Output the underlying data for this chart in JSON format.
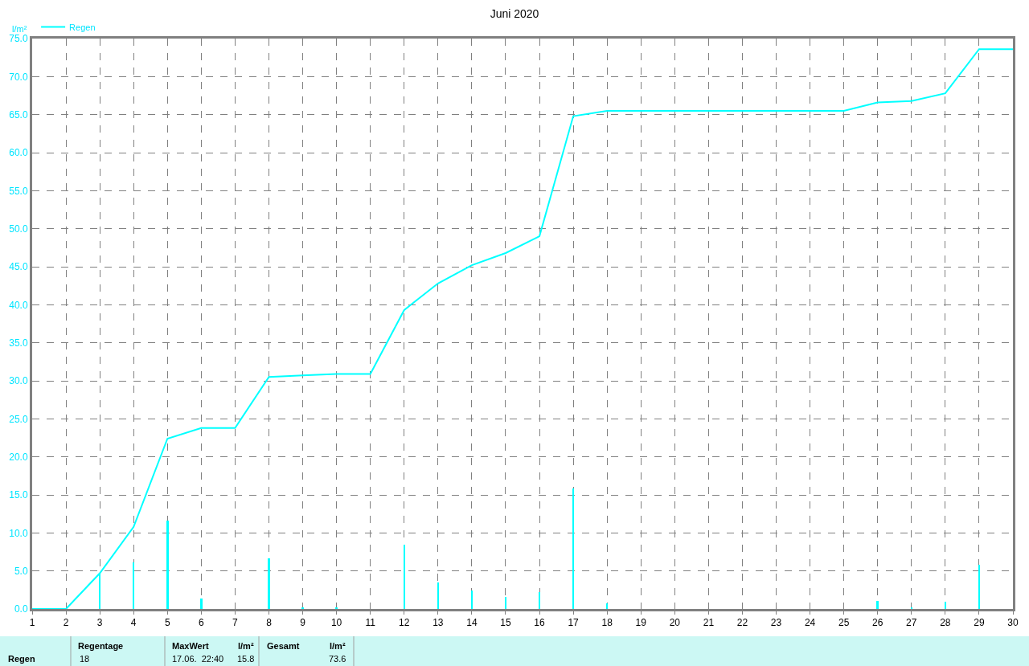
{
  "chart_data": {
    "type": "bar",
    "title": "Juni 2020",
    "ylabel": "l/m²",
    "series": [
      {
        "color": "#00ffff",
        "x": [
          3,
          4,
          5,
          6,
          8,
          9,
          10,
          12,
          13,
          14,
          15,
          16,
          17,
          18,
          26,
          27,
          28,
          29
        ],
        "values": [
          4.7,
          6.1,
          11.6,
          1.4,
          6.7,
          0.2,
          0.2,
          8.4,
          3.5,
          2.4,
          1.6,
          2.2,
          15.8,
          0.7,
          1.1,
          0.2,
          1.0,
          5.8
        ]
      },
      {
        "type": "line",
        "name": "Regen",
        "color": "#00ffff",
        "x": [
          1,
          2,
          3,
          4,
          5,
          6,
          7,
          8,
          9,
          10,
          11,
          12,
          13,
          14,
          15,
          16,
          17,
          18,
          19,
          20,
          21,
          22,
          23,
          24,
          25,
          26,
          27,
          28,
          29,
          30
        ],
        "values": [
          0,
          0,
          4.7,
          10.8,
          22.4,
          23.8,
          23.8,
          30.5,
          30.7,
          30.9,
          30.9,
          39.3,
          42.8,
          45.2,
          46.8,
          49.0,
          64.8,
          65.5,
          65.5,
          65.5,
          65.5,
          65.5,
          65.5,
          65.5,
          65.5,
          66.6,
          66.8,
          67.8,
          73.6,
          73.6
        ]
      }
    ],
    "xlim": [
      1,
      30
    ],
    "xticks": [
      1,
      2,
      3,
      4,
      5,
      6,
      7,
      8,
      9,
      10,
      11,
      12,
      13,
      14,
      15,
      16,
      17,
      18,
      19,
      20,
      21,
      22,
      23,
      24,
      25,
      26,
      27,
      28,
      29,
      30
    ],
    "ylim": [
      0,
      75
    ],
    "yticks": [
      {
        "value": 0,
        "label": "0.0"
      },
      {
        "value": 5,
        "label": "5.0"
      },
      {
        "value": 10,
        "label": "10.0"
      },
      {
        "value": 15,
        "label": "15.0"
      },
      {
        "value": 20,
        "label": "20.0"
      },
      {
        "value": 25,
        "label": "25.0"
      },
      {
        "value": 30,
        "label": "30.0"
      },
      {
        "value": 35,
        "label": "35.0"
      },
      {
        "value": 40,
        "label": "40.0"
      },
      {
        "value": 45,
        "label": "45.0"
      },
      {
        "value": 50,
        "label": "50.0"
      },
      {
        "value": 55,
        "label": "55.0"
      },
      {
        "value": 60,
        "label": "60.0"
      },
      {
        "value": 65,
        "label": "65.0"
      },
      {
        "value": 70,
        "label": "70.0"
      },
      {
        "value": 75,
        "label": "75.0"
      }
    ],
    "grid": true,
    "legend": "top left",
    "line_style": "solid",
    "marker": "none",
    "annotations": [
      "Regen",
      "Regentage",
      "18",
      "MaxWert",
      "17.06.  22:40",
      "l/m²",
      "15.8",
      "Gesamt",
      "l/m²",
      "73.6"
    ]
  }
}
